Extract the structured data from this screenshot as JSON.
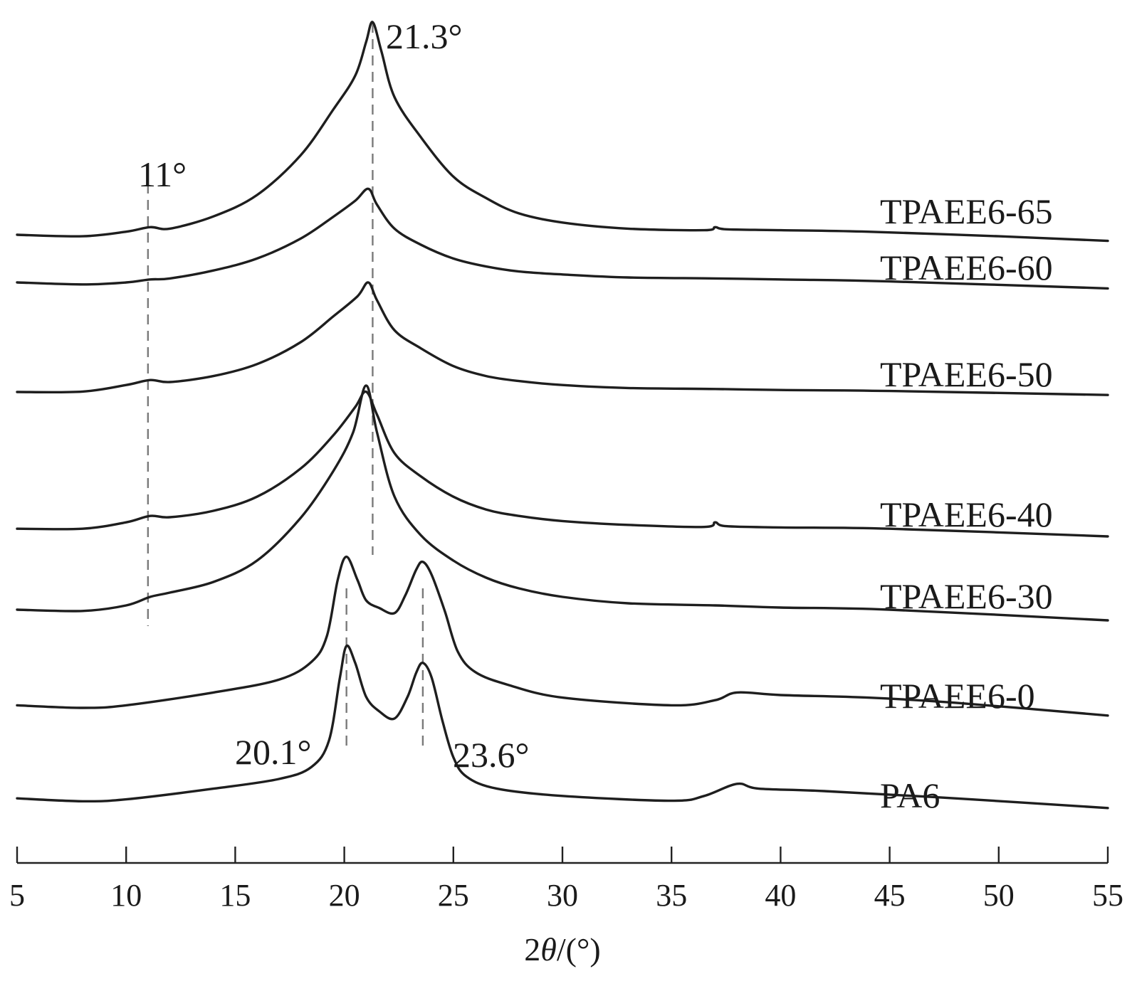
{
  "chart_data": {
    "type": "line",
    "title": "",
    "xlabel_prefix": "2",
    "xlabel_symbol": "θ",
    "xlabel_suffix": "/(°)",
    "ylabel": "",
    "xlim": [
      5,
      55
    ],
    "xticks": [
      5,
      10,
      15,
      20,
      25,
      30,
      35,
      40,
      45,
      50,
      55
    ],
    "yticks_shown": false,
    "grid": false,
    "legend": "labels at right end of each curve",
    "series": [
      {
        "name": "PA6",
        "points": [
          [
            5,
            0.1
          ],
          [
            8,
            0.04
          ],
          [
            10,
            0.08
          ],
          [
            14,
            0.3
          ],
          [
            17,
            0.5
          ],
          [
            18.5,
            0.75
          ],
          [
            19.3,
            1.3
          ],
          [
            19.8,
            2.6
          ],
          [
            20.1,
            3.25
          ],
          [
            20.5,
            2.9
          ],
          [
            21,
            2.2
          ],
          [
            21.6,
            1.9
          ],
          [
            22.3,
            1.75
          ],
          [
            22.9,
            2.2
          ],
          [
            23.3,
            2.7
          ],
          [
            23.6,
            2.9
          ],
          [
            24,
            2.6
          ],
          [
            24.5,
            1.7
          ],
          [
            25,
            0.95
          ],
          [
            25.6,
            0.55
          ],
          [
            27,
            0.3
          ],
          [
            30,
            0.15
          ],
          [
            35,
            0.05
          ],
          [
            36.5,
            0.15
          ],
          [
            38,
            0.4
          ],
          [
            39,
            0.3
          ],
          [
            42,
            0.25
          ],
          [
            48,
            0.1
          ],
          [
            55,
            -0.1
          ]
        ]
      },
      {
        "name": "TPAEE6-0",
        "points": [
          [
            5,
            0.05
          ],
          [
            8,
            0.0
          ],
          [
            10,
            0.05
          ],
          [
            14,
            0.3
          ],
          [
            17,
            0.55
          ],
          [
            18.5,
            0.9
          ],
          [
            19.2,
            1.4
          ],
          [
            19.7,
            2.5
          ],
          [
            20.1,
            2.95
          ],
          [
            20.6,
            2.5
          ],
          [
            21,
            2.1
          ],
          [
            21.6,
            1.95
          ],
          [
            22.3,
            1.85
          ],
          [
            22.8,
            2.2
          ],
          [
            23.3,
            2.7
          ],
          [
            23.6,
            2.85
          ],
          [
            24,
            2.6
          ],
          [
            24.6,
            1.9
          ],
          [
            25.2,
            1.1
          ],
          [
            26,
            0.7
          ],
          [
            27.5,
            0.45
          ],
          [
            30,
            0.2
          ],
          [
            35,
            0.05
          ],
          [
            37,
            0.15
          ],
          [
            38,
            0.3
          ],
          [
            40,
            0.25
          ],
          [
            44,
            0.2
          ],
          [
            48,
            0.1
          ],
          [
            55,
            -0.15
          ]
        ]
      },
      {
        "name": "TPAEE6-30",
        "points": [
          [
            5,
            0.05
          ],
          [
            8,
            0.02
          ],
          [
            10,
            0.15
          ],
          [
            11.1,
            0.35
          ],
          [
            12,
            0.45
          ],
          [
            14,
            0.7
          ],
          [
            16,
            1.2
          ],
          [
            18,
            2.2
          ],
          [
            19.5,
            3.3
          ],
          [
            20.4,
            4.2
          ],
          [
            21,
            5.3
          ],
          [
            21.5,
            4.2
          ],
          [
            22.3,
            2.7
          ],
          [
            23.5,
            1.8
          ],
          [
            25,
            1.2
          ],
          [
            26.5,
            0.8
          ],
          [
            28,
            0.55
          ],
          [
            30,
            0.35
          ],
          [
            33,
            0.2
          ],
          [
            37,
            0.15
          ],
          [
            40,
            0.1
          ],
          [
            45,
            0.05
          ],
          [
            55,
            -0.2
          ]
        ]
      },
      {
        "name": "TPAEE6-40",
        "points": [
          [
            5,
            0.05
          ],
          [
            8,
            0.05
          ],
          [
            10,
            0.3
          ],
          [
            11.1,
            0.55
          ],
          [
            12,
            0.5
          ],
          [
            14,
            0.75
          ],
          [
            16,
            1.3
          ],
          [
            18,
            2.4
          ],
          [
            19.5,
            3.7
          ],
          [
            20.5,
            4.8
          ],
          [
            21,
            5.4
          ],
          [
            21.5,
            4.5
          ],
          [
            22.3,
            3.0
          ],
          [
            23.5,
            2.1
          ],
          [
            25,
            1.3
          ],
          [
            26.5,
            0.8
          ],
          [
            28,
            0.55
          ],
          [
            30,
            0.35
          ],
          [
            33,
            0.2
          ],
          [
            36.5,
            0.12
          ],
          [
            37,
            0.3
          ],
          [
            37.5,
            0.15
          ],
          [
            40,
            0.1
          ],
          [
            45,
            0.05
          ],
          [
            55,
            -0.25
          ]
        ]
      },
      {
        "name": "TPAEE6-50",
        "points": [
          [
            5,
            0.0
          ],
          [
            8,
            0.02
          ],
          [
            10,
            0.35
          ],
          [
            11.1,
            0.6
          ],
          [
            12,
            0.5
          ],
          [
            14,
            0.8
          ],
          [
            16,
            1.4
          ],
          [
            18,
            2.5
          ],
          [
            19.5,
            3.8
          ],
          [
            20.6,
            4.8
          ],
          [
            21.1,
            5.5
          ],
          [
            21.5,
            4.6
          ],
          [
            22.3,
            3.1
          ],
          [
            23.5,
            2.2
          ],
          [
            25,
            1.3
          ],
          [
            26.5,
            0.8
          ],
          [
            28,
            0.55
          ],
          [
            30,
            0.35
          ],
          [
            33,
            0.2
          ],
          [
            37,
            0.15
          ],
          [
            40,
            0.1
          ],
          [
            45,
            0.05
          ],
          [
            55,
            -0.15
          ]
        ]
      },
      {
        "name": "TPAEE6-60",
        "points": [
          [
            5,
            0.0
          ],
          [
            8,
            -0.1
          ],
          [
            10,
            0.0
          ],
          [
            11.1,
            0.15
          ],
          [
            12,
            0.2
          ],
          [
            14,
            0.6
          ],
          [
            16,
            1.2
          ],
          [
            18,
            2.2
          ],
          [
            19.5,
            3.3
          ],
          [
            20.5,
            4.1
          ],
          [
            21.1,
            4.7
          ],
          [
            21.5,
            3.9
          ],
          [
            22.3,
            2.7
          ],
          [
            23.5,
            1.9
          ],
          [
            25,
            1.2
          ],
          [
            26.5,
            0.8
          ],
          [
            28,
            0.55
          ],
          [
            30,
            0.4
          ],
          [
            33,
            0.25
          ],
          [
            37,
            0.2
          ],
          [
            40,
            0.15
          ],
          [
            45,
            0.05
          ],
          [
            55,
            -0.3
          ]
        ]
      },
      {
        "name": "TPAEE6-65",
        "points": [
          [
            5,
            0.0
          ],
          [
            8,
            -0.05
          ],
          [
            10,
            0.1
          ],
          [
            11.1,
            0.25
          ],
          [
            12,
            0.2
          ],
          [
            14,
            0.6
          ],
          [
            16,
            1.3
          ],
          [
            18,
            2.6
          ],
          [
            19.5,
            4.1
          ],
          [
            20.5,
            5.2
          ],
          [
            21,
            6.3
          ],
          [
            21.3,
            6.95
          ],
          [
            21.7,
            6.0
          ],
          [
            22.3,
            4.5
          ],
          [
            23.5,
            3.2
          ],
          [
            25,
            1.9
          ],
          [
            26.5,
            1.2
          ],
          [
            28,
            0.7
          ],
          [
            30,
            0.4
          ],
          [
            33,
            0.2
          ],
          [
            36.5,
            0.15
          ],
          [
            37,
            0.25
          ],
          [
            37.5,
            0.18
          ],
          [
            40,
            0.15
          ],
          [
            44,
            0.1
          ],
          [
            50,
            -0.05
          ],
          [
            55,
            -0.2
          ]
        ]
      }
    ],
    "reference_lines": [
      {
        "x": 11
      },
      {
        "x": 20.1
      },
      {
        "x": 21.3
      },
      {
        "x": 23.6
      }
    ],
    "annotations": [
      {
        "text": "21.3°",
        "x": 21.3
      },
      {
        "text": "11°",
        "x": 11
      },
      {
        "text": "20.1°",
        "x": 20.1
      },
      {
        "text": "23.6°",
        "x": 23.6
      }
    ]
  }
}
